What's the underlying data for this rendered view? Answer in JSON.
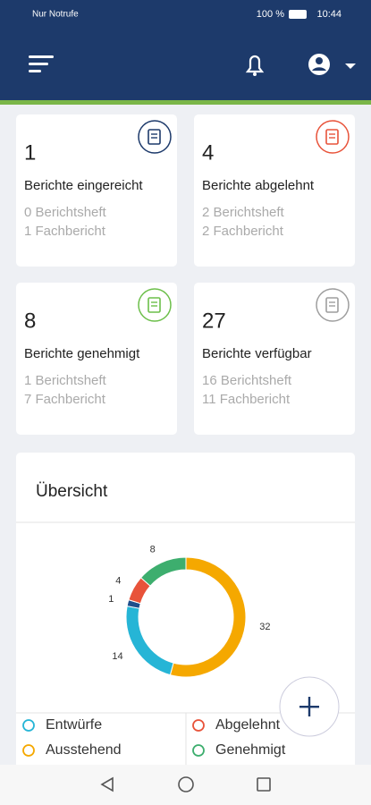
{
  "status_bar": {
    "left": "Nur Notrufe",
    "battery": "100 %",
    "time": "10:44"
  },
  "cards": [
    {
      "count": "1",
      "title": "Berichte eingereicht",
      "line1": "0 Berichtsheft",
      "line2": "1 Fachbericht",
      "icon_color": "#1d3a6b"
    },
    {
      "count": "4",
      "title": "Berichte abgelehnt",
      "line1": "2 Berichtsheft",
      "line2": "2 Fachbericht",
      "icon_color": "#e8533a"
    },
    {
      "count": "8",
      "title": "Berichte genehmigt",
      "line1": "1 Berichtsheft",
      "line2": "7 Fachbericht",
      "icon_color": "#6cbf4a"
    },
    {
      "count": "27",
      "title": "Berichte verfügbar",
      "line1": "16 Berichtsheft",
      "line2": "11 Fachbericht",
      "icon_color": "#9e9e9e"
    }
  ],
  "overview": {
    "title": "Übersicht"
  },
  "chart": {
    "type": "pie",
    "categories": [
      "Ausstehend",
      "Entwürfe",
      null,
      "Abgelehnt",
      "Genehmigt"
    ],
    "values": [
      32,
      14,
      1,
      4,
      8
    ],
    "colors": [
      "#f5a800",
      "#26b5d6",
      "#1f4e8c",
      "#e8533a",
      "#3dae6e"
    ]
  }
}
